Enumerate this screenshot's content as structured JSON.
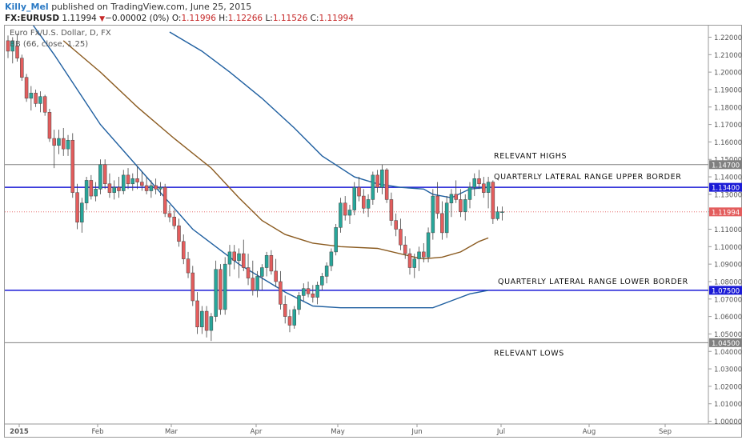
{
  "header": {
    "author": "Killy_Mel",
    "published_text": "published on TradingView.com, June 25, 2015",
    "symbol": "FX:EURUSD",
    "last": "1.11994",
    "change": "−0.00002 (0%)",
    "ohlc": {
      "o_label": "O:",
      "o": "1.11996",
      "h_label": "H:",
      "h": "1.12266",
      "l_label": "L:",
      "l": "1.11526",
      "c_label": "C:",
      "c": "1.11994"
    }
  },
  "legend": {
    "title": "Euro Fx/U.S. Dollar, D, FX",
    "indicator": "BB (66, close, 1.25)"
  },
  "colors": {
    "up": "#27a69a",
    "down": "#e35d5d",
    "ma_blue": "#1f5fa0",
    "ma_brown": "#8a5a1f",
    "hline_blue": "#1b1bd6",
    "hline_gray": "#808080",
    "last_price": "#e35d5d"
  },
  "chart_data": {
    "type": "candlestick",
    "x_ticks": [
      "2015",
      "Feb",
      "Mar",
      "Apr",
      "May",
      "Jun",
      "Jul",
      "Aug",
      "Sep"
    ],
    "y_ticks": [
      "1.22000",
      "1.21000",
      "1.20000",
      "1.19000",
      "1.18000",
      "1.17000",
      "1.16000",
      "1.15000",
      "1.14000",
      "1.13000",
      "1.12000",
      "1.11000",
      "1.10000",
      "1.09000",
      "1.08000",
      "1.07000",
      "1.06000",
      "1.05000",
      "1.04000",
      "1.03000",
      "1.02000",
      "1.01000",
      "1.00000"
    ],
    "ylim": [
      0.995,
      1.225
    ],
    "candles": [
      [
        1.218,
        1.221,
        1.208,
        1.212
      ],
      [
        1.212,
        1.22,
        1.205,
        1.218
      ],
      [
        1.215,
        1.222,
        1.206,
        1.208
      ],
      [
        1.208,
        1.21,
        1.195,
        1.197
      ],
      [
        1.197,
        1.199,
        1.183,
        1.185
      ],
      [
        1.185,
        1.192,
        1.178,
        1.188
      ],
      [
        1.188,
        1.19,
        1.18,
        1.182
      ],
      [
        1.182,
        1.189,
        1.177,
        1.186
      ],
      [
        1.186,
        1.187,
        1.175,
        1.177
      ],
      [
        1.177,
        1.179,
        1.16,
        1.162
      ],
      [
        1.162,
        1.167,
        1.145,
        1.158
      ],
      [
        1.158,
        1.167,
        1.153,
        1.162
      ],
      [
        1.162,
        1.168,
        1.152,
        1.156
      ],
      [
        1.156,
        1.164,
        1.152,
        1.161
      ],
      [
        1.161,
        1.165,
        1.128,
        1.131
      ],
      [
        1.131,
        1.136,
        1.11,
        1.114
      ],
      [
        1.114,
        1.128,
        1.108,
        1.125
      ],
      [
        1.125,
        1.14,
        1.121,
        1.138
      ],
      [
        1.138,
        1.141,
        1.127,
        1.129
      ],
      [
        1.129,
        1.137,
        1.126,
        1.133
      ],
      [
        1.133,
        1.15,
        1.13,
        1.147
      ],
      [
        1.147,
        1.15,
        1.133,
        1.136
      ],
      [
        1.136,
        1.142,
        1.128,
        1.131
      ],
      [
        1.131,
        1.138,
        1.127,
        1.134
      ],
      [
        1.134,
        1.14,
        1.128,
        1.132
      ],
      [
        1.132,
        1.144,
        1.13,
        1.141
      ],
      [
        1.141,
        1.145,
        1.133,
        1.136
      ],
      [
        1.136,
        1.142,
        1.132,
        1.139
      ],
      [
        1.139,
        1.146,
        1.133,
        1.137
      ],
      [
        1.137,
        1.143,
        1.132,
        1.135
      ],
      [
        1.135,
        1.14,
        1.13,
        1.132
      ],
      [
        1.132,
        1.138,
        1.128,
        1.135
      ],
      [
        1.135,
        1.139,
        1.13,
        1.133
      ],
      [
        1.133,
        1.137,
        1.129,
        1.134
      ],
      [
        1.134,
        1.136,
        1.117,
        1.119
      ],
      [
        1.119,
        1.124,
        1.114,
        1.117
      ],
      [
        1.117,
        1.121,
        1.11,
        1.112
      ],
      [
        1.112,
        1.116,
        1.1,
        1.103
      ],
      [
        1.103,
        1.107,
        1.09,
        1.093
      ],
      [
        1.093,
        1.097,
        1.082,
        1.085
      ],
      [
        1.085,
        1.089,
        1.066,
        1.069
      ],
      [
        1.069,
        1.074,
        1.05,
        1.054
      ],
      [
        1.054,
        1.066,
        1.05,
        1.063
      ],
      [
        1.063,
        1.066,
        1.048,
        1.052
      ],
      [
        1.052,
        1.062,
        1.046,
        1.06
      ],
      [
        1.06,
        1.092,
        1.057,
        1.087
      ],
      [
        1.087,
        1.09,
        1.061,
        1.064
      ],
      [
        1.064,
        1.094,
        1.061,
        1.09
      ],
      [
        1.09,
        1.101,
        1.083,
        1.097
      ],
      [
        1.097,
        1.101,
        1.087,
        1.092
      ],
      [
        1.092,
        1.099,
        1.082,
        1.096
      ],
      [
        1.096,
        1.104,
        1.086,
        1.088
      ],
      [
        1.088,
        1.096,
        1.078,
        1.082
      ],
      [
        1.082,
        1.092,
        1.072,
        1.075
      ],
      [
        1.075,
        1.086,
        1.071,
        1.083
      ],
      [
        1.083,
        1.09,
        1.075,
        1.088
      ],
      [
        1.088,
        1.097,
        1.083,
        1.095
      ],
      [
        1.095,
        1.098,
        1.084,
        1.086
      ],
      [
        1.086,
        1.093,
        1.077,
        1.08
      ],
      [
        1.08,
        1.086,
        1.064,
        1.067
      ],
      [
        1.067,
        1.072,
        1.056,
        1.06
      ],
      [
        1.06,
        1.064,
        1.051,
        1.055
      ],
      [
        1.055,
        1.066,
        1.053,
        1.064
      ],
      [
        1.064,
        1.074,
        1.061,
        1.072
      ],
      [
        1.072,
        1.079,
        1.069,
        1.076
      ],
      [
        1.076,
        1.08,
        1.071,
        1.073
      ],
      [
        1.073,
        1.078,
        1.068,
        1.071
      ],
      [
        1.071,
        1.08,
        1.067,
        1.078
      ],
      [
        1.078,
        1.085,
        1.075,
        1.083
      ],
      [
        1.083,
        1.091,
        1.079,
        1.089
      ],
      [
        1.089,
        1.099,
        1.086,
        1.097
      ],
      [
        1.097,
        1.113,
        1.095,
        1.111
      ],
      [
        1.111,
        1.128,
        1.108,
        1.125
      ],
      [
        1.125,
        1.129,
        1.115,
        1.118
      ],
      [
        1.118,
        1.124,
        1.113,
        1.121
      ],
      [
        1.121,
        1.137,
        1.118,
        1.134
      ],
      [
        1.134,
        1.14,
        1.126,
        1.129
      ],
      [
        1.129,
        1.133,
        1.119,
        1.122
      ],
      [
        1.122,
        1.13,
        1.117,
        1.127
      ],
      [
        1.127,
        1.143,
        1.124,
        1.141
      ],
      [
        1.141,
        1.144,
        1.131,
        1.134
      ],
      [
        1.134,
        1.147,
        1.13,
        1.144
      ],
      [
        1.144,
        1.145,
        1.125,
        1.127
      ],
      [
        1.127,
        1.131,
        1.112,
        1.115
      ],
      [
        1.115,
        1.119,
        1.106,
        1.11
      ],
      [
        1.11,
        1.116,
        1.098,
        1.101
      ],
      [
        1.101,
        1.106,
        1.093,
        1.096
      ],
      [
        1.096,
        1.099,
        1.084,
        1.088
      ],
      [
        1.088,
        1.096,
        1.082,
        1.093
      ],
      [
        1.093,
        1.1,
        1.086,
        1.097
      ],
      [
        1.097,
        1.102,
        1.091,
        1.094
      ],
      [
        1.094,
        1.111,
        1.091,
        1.108
      ],
      [
        1.108,
        1.133,
        1.104,
        1.129
      ],
      [
        1.129,
        1.137,
        1.116,
        1.119
      ],
      [
        1.119,
        1.126,
        1.104,
        1.108
      ],
      [
        1.108,
        1.129,
        1.105,
        1.125
      ],
      [
        1.125,
        1.133,
        1.117,
        1.13
      ],
      [
        1.13,
        1.138,
        1.125,
        1.127
      ],
      [
        1.127,
        1.133,
        1.117,
        1.12
      ],
      [
        1.12,
        1.13,
        1.115,
        1.127
      ],
      [
        1.127,
        1.137,
        1.122,
        1.134
      ],
      [
        1.134,
        1.142,
        1.129,
        1.139
      ],
      [
        1.139,
        1.144,
        1.133,
        1.136
      ],
      [
        1.136,
        1.14,
        1.128,
        1.131
      ],
      [
        1.131,
        1.14,
        1.122,
        1.137
      ],
      [
        1.137,
        1.138,
        1.113,
        1.116
      ],
      [
        1.116,
        1.123,
        1.115,
        1.12
      ],
      [
        1.12,
        1.123,
        1.115,
        1.12
      ]
    ],
    "ma_blue": [
      [
        0,
        1.247
      ],
      [
        10,
        1.21
      ],
      [
        20,
        1.17
      ],
      [
        30,
        1.14
      ],
      [
        40,
        1.11
      ],
      [
        50,
        1.09
      ],
      [
        55,
        1.082
      ],
      [
        60,
        1.074
      ],
      [
        66,
        1.066
      ],
      [
        72,
        1.065
      ],
      [
        80,
        1.065
      ],
      [
        88,
        1.065
      ],
      [
        92,
        1.065
      ],
      [
        96,
        1.069
      ],
      [
        100,
        1.073
      ],
      [
        104,
        1.075
      ]
    ],
    "ma_upper": [
      [
        35,
        1.223
      ],
      [
        42,
        1.212
      ],
      [
        48,
        1.2
      ],
      [
        55,
        1.185
      ],
      [
        62,
        1.168
      ],
      [
        68,
        1.152
      ],
      [
        75,
        1.14
      ],
      [
        80,
        1.136
      ],
      [
        85,
        1.134
      ],
      [
        90,
        1.133
      ],
      [
        92,
        1.13
      ],
      [
        96,
        1.128
      ],
      [
        100,
        1.133
      ],
      [
        104,
        1.134
      ]
    ],
    "ma_brown": [
      [
        12,
        1.218
      ],
      [
        20,
        1.2
      ],
      [
        28,
        1.18
      ],
      [
        36,
        1.162
      ],
      [
        44,
        1.145
      ],
      [
        50,
        1.128
      ],
      [
        55,
        1.115
      ],
      [
        60,
        1.107
      ],
      [
        66,
        1.102
      ],
      [
        72,
        1.1
      ],
      [
        80,
        1.099
      ],
      [
        88,
        1.094
      ],
      [
        90,
        1.093
      ],
      [
        94,
        1.094
      ],
      [
        98,
        1.097
      ],
      [
        102,
        1.103
      ],
      [
        104,
        1.105
      ]
    ],
    "levels": [
      {
        "label": "1.14700",
        "value": 1.147,
        "color": "gray",
        "annotation": "RELEVANT HIGHS"
      },
      {
        "label": "1.13400",
        "value": 1.134,
        "color": "blue",
        "annotation": "QUARTERLY LATERAL RANGE UPPER BORDER"
      },
      {
        "label": "1.07500",
        "value": 1.075,
        "color": "blue",
        "annotation": "QUARTERLY LATERAL RANGE LOWER BORDER"
      },
      {
        "label": "1.04500",
        "value": 1.045,
        "color": "gray",
        "annotation": "RELEVANT LOWS"
      }
    ],
    "last_price": {
      "label": "1.11994",
      "value": 1.11994
    }
  }
}
